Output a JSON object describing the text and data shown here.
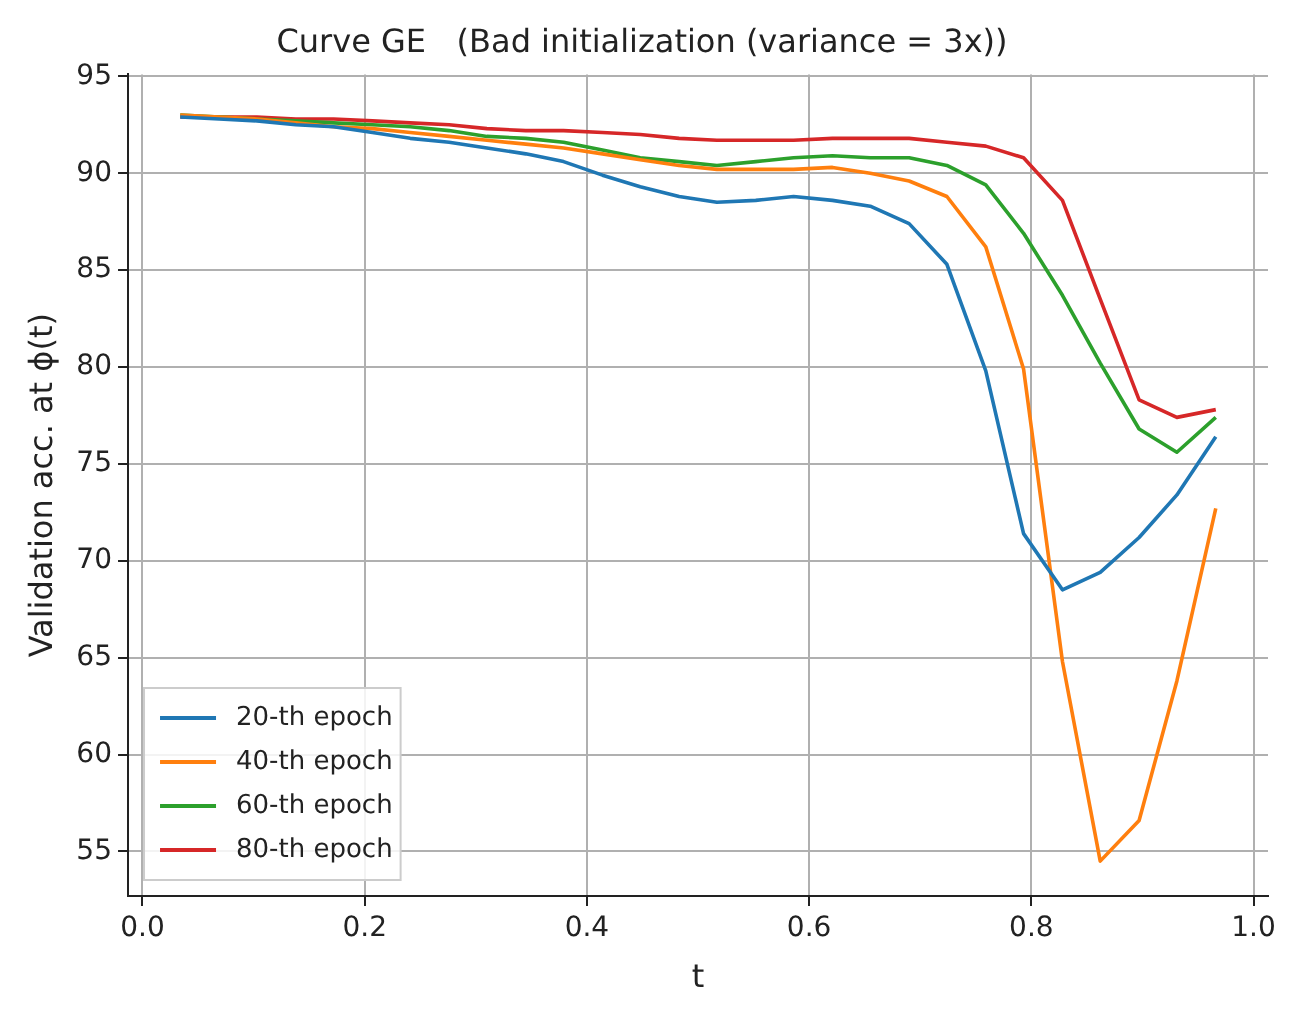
{
  "chart_data": {
    "type": "line",
    "title": "Curve GE   (Bad initialization (variance = 3x))",
    "xlabel": "t",
    "ylabel": "Validation acc. at ϕ(t)",
    "x": [
      0.034,
      0.069,
      0.103,
      0.138,
      0.172,
      0.207,
      0.241,
      0.276,
      0.31,
      0.345,
      0.379,
      0.414,
      0.448,
      0.483,
      0.517,
      0.552,
      0.586,
      0.621,
      0.655,
      0.69,
      0.724,
      0.759,
      0.793,
      0.828,
      0.862,
      0.897,
      0.931,
      0.966
    ],
    "series": [
      {
        "name": "20-th epoch",
        "color": "#1f77b4",
        "values": [
          92.9,
          92.8,
          92.7,
          92.5,
          92.4,
          92.1,
          91.8,
          91.6,
          91.3,
          91.0,
          90.6,
          89.9,
          89.3,
          88.8,
          88.5,
          88.6,
          88.8,
          88.6,
          88.3,
          87.4,
          85.3,
          79.8,
          71.4,
          68.5,
          69.4,
          71.2,
          73.4,
          76.4
        ]
      },
      {
        "name": "40-th epoch",
        "color": "#ff7f0e",
        "values": [
          93.0,
          92.9,
          92.8,
          92.6,
          92.4,
          92.3,
          92.1,
          91.9,
          91.7,
          91.5,
          91.3,
          91.0,
          90.7,
          90.4,
          90.2,
          90.2,
          90.2,
          90.3,
          90.0,
          89.6,
          88.8,
          86.2,
          79.9,
          64.8,
          54.5,
          56.6,
          63.8,
          72.7
        ]
      },
      {
        "name": "60-th epoch",
        "color": "#2ca02c",
        "values": [
          93.0,
          92.9,
          92.8,
          92.7,
          92.6,
          92.5,
          92.4,
          92.2,
          91.9,
          91.8,
          91.6,
          91.2,
          90.8,
          90.6,
          90.4,
          90.6,
          90.8,
          90.9,
          90.8,
          90.8,
          90.4,
          89.4,
          86.9,
          83.7,
          80.2,
          76.8,
          75.6,
          77.4
        ]
      },
      {
        "name": "80-th epoch",
        "color": "#d62728",
        "values": [
          92.9,
          92.9,
          92.9,
          92.8,
          92.8,
          92.7,
          92.6,
          92.5,
          92.3,
          92.2,
          92.2,
          92.1,
          92.0,
          91.8,
          91.7,
          91.7,
          91.7,
          91.8,
          91.8,
          91.8,
          91.6,
          91.4,
          90.8,
          88.6,
          83.5,
          78.3,
          77.4,
          77.8
        ]
      }
    ],
    "xlim": [
      -0.013,
      1.013
    ],
    "ylim": [
      52.7,
      95.1
    ],
    "xticks": [
      {
        "value": 0,
        "label": "0.0"
      },
      {
        "value": 0.2,
        "label": "0.2"
      },
      {
        "value": 0.4,
        "label": "0.4"
      },
      {
        "value": 0.6,
        "label": "0.6"
      },
      {
        "value": 0.8,
        "label": "0.8"
      },
      {
        "value": 1,
        "label": "1.0"
      }
    ],
    "yticks": [
      55,
      60,
      65,
      70,
      75,
      80,
      85,
      90,
      95
    ],
    "grid": true,
    "legend": "bottom left",
    "marker": "none",
    "line_style": "solid"
  }
}
